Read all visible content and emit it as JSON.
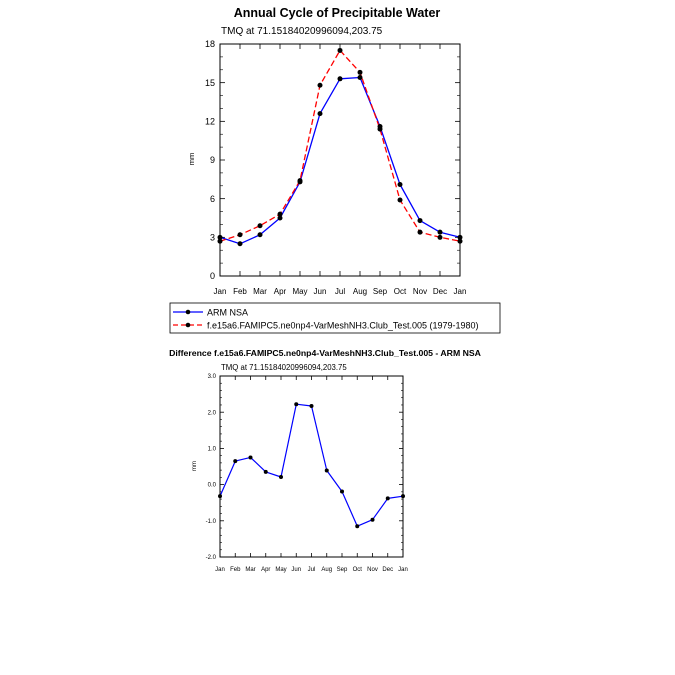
{
  "chart_data": [
    {
      "type": "line",
      "title": "Annual Cycle of Precipitable Water",
      "subtitle": "TMQ at 71.15184020996094,203.75",
      "xlabel": "",
      "ylabel": "mm",
      "categories": [
        "Jan",
        "Feb",
        "Mar",
        "Apr",
        "May",
        "Jun",
        "Jul",
        "Aug",
        "Sep",
        "Oct",
        "Nov",
        "Dec",
        "Jan"
      ],
      "ylim": [
        0,
        18
      ],
      "yticks": [
        0,
        3,
        6,
        9,
        12,
        15,
        18
      ],
      "series": [
        {
          "name": "ARM NSA",
          "color": "#0000ff",
          "dash": "solid",
          "values": [
            3.0,
            2.5,
            3.2,
            4.5,
            7.3,
            12.6,
            15.3,
            15.4,
            11.6,
            7.1,
            4.3,
            3.4,
            3.0
          ]
        },
        {
          "name": "f.e15a6.FAMIPC5.ne0np4-VarMeshNH3.Club_Test.005 (1979-1980)",
          "color": "#ff0000",
          "dash": "dashed",
          "values": [
            2.7,
            3.2,
            3.9,
            4.8,
            7.4,
            14.8,
            17.5,
            15.8,
            11.4,
            5.9,
            3.4,
            3.0,
            2.7
          ]
        }
      ],
      "legend": "below"
    },
    {
      "type": "line",
      "title": "Difference f.e15a6.FAMIPC5.ne0np4-VarMeshNH3.Club_Test.005 - ARM NSA",
      "subtitle": "TMQ at 71.15184020996094,203.75",
      "xlabel": "",
      "ylabel": "mm",
      "categories": [
        "Jan",
        "Feb",
        "Mar",
        "Apr",
        "May",
        "Jun",
        "Jul",
        "Aug",
        "Sep",
        "Oct",
        "Nov",
        "Dec",
        "Jan"
      ],
      "ylim": [
        -2.0,
        3.0
      ],
      "yticks": [
        "-2.0",
        "-1.0",
        "0.0",
        "1.0",
        "2.0",
        "3.0"
      ],
      "series": [
        {
          "color": "#0000ff",
          "dash": "solid",
          "values": [
            -0.32,
            0.65,
            0.75,
            0.35,
            0.21,
            2.22,
            2.17,
            0.39,
            -0.19,
            -1.15,
            -0.97,
            -0.38,
            -0.32
          ]
        }
      ]
    }
  ]
}
